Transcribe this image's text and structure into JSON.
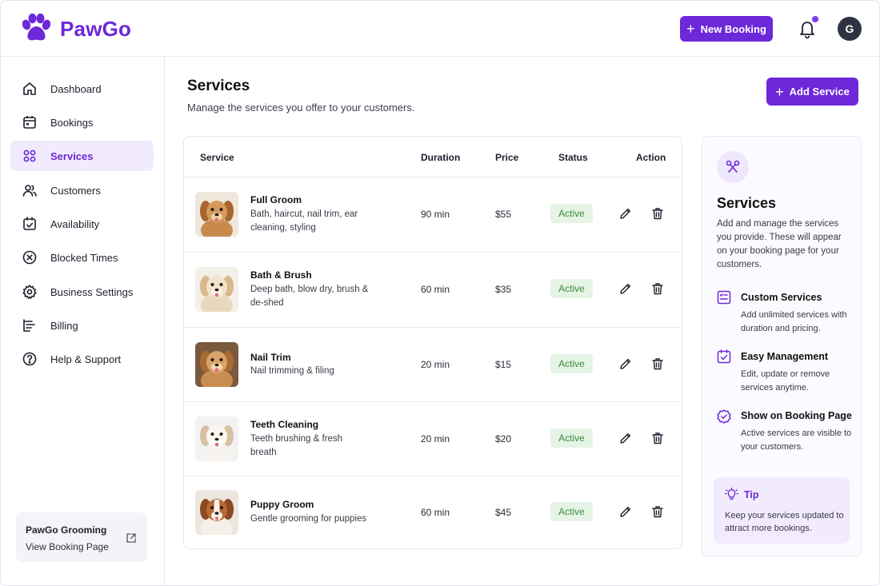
{
  "app": {
    "name": "PawGo",
    "accent": "#6d28d9",
    "new_booking_label": "New Booking",
    "avatar_initial": "G"
  },
  "sidebar": {
    "items": [
      {
        "label": "Dashboard",
        "icon": "home-icon"
      },
      {
        "label": "Bookings",
        "icon": "calendar-icon"
      },
      {
        "label": "Services",
        "icon": "grid-icon",
        "active": true
      },
      {
        "label": "Customers",
        "icon": "users-icon"
      },
      {
        "label": "Availability",
        "icon": "calendar-check-icon"
      },
      {
        "label": "Blocked Times",
        "icon": "x-circle-icon"
      },
      {
        "label": "Business Settings",
        "icon": "gear-icon"
      },
      {
        "label": "Billing",
        "icon": "billing-icon"
      },
      {
        "label": "Help & Support",
        "icon": "help-icon"
      }
    ],
    "business": {
      "name": "PawGo Grooming",
      "link_label": "View Booking Page"
    }
  },
  "main": {
    "title": "Services",
    "subtitle": "Manage the services you offer to your customers.",
    "add_label": "Add Service",
    "table": {
      "headers": [
        "Service",
        "Duration",
        "Price",
        "Status",
        "Action"
      ],
      "rows": [
        {
          "name": "Full Groom",
          "desc": "Bath, haircut, nail trim, ear cleaning, styling",
          "duration": "90 min",
          "price": "$55",
          "status": "Active"
        },
        {
          "name": "Bath & Brush",
          "desc": "Deep bath, blow dry, brush & de-shed",
          "duration": "60 min",
          "price": "$35",
          "status": "Active"
        },
        {
          "name": "Nail Trim",
          "desc": "Nail trimming & filing",
          "duration": "20 min",
          "price": "$15",
          "status": "Active"
        },
        {
          "name": "Teeth Cleaning",
          "desc": "Teeth brushing & fresh breath",
          "duration": "20 min",
          "price": "$20",
          "status": "Active"
        },
        {
          "name": "Puppy Groom",
          "desc": "Gentle grooming for puppies",
          "duration": "60 min",
          "price": "$45",
          "status": "Active"
        }
      ]
    }
  },
  "info": {
    "title": "Services",
    "text": "Add and manage the services you provide. These will appear on your booking page for your customers.",
    "features": [
      {
        "title": "Custom Services",
        "desc": "Add unlimited services with duration and pricing."
      },
      {
        "title": "Easy Management",
        "desc": "Edit, update or remove services anytime."
      },
      {
        "title": "Show on Booking Page",
        "desc": "Active services are visible to your customers."
      }
    ],
    "tip": {
      "title": "Tip",
      "text": "Keep your services updated to attract more bookings."
    }
  }
}
